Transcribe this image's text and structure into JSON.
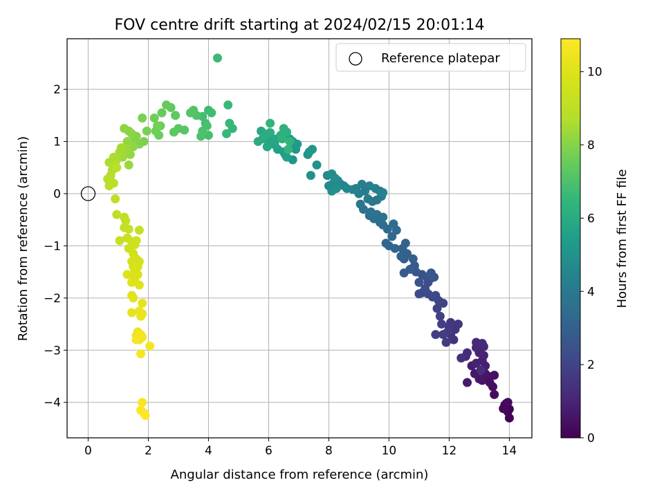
{
  "chart_data": {
    "type": "scatter",
    "title": "FOV centre drift starting at 2024/02/15 20:01:14",
    "xlabel": "Angular distance from reference (arcmin)",
    "ylabel": "Rotation from reference (arcmin)",
    "xlim": [
      -0.7,
      14.75
    ],
    "ylim": [
      -4.68,
      2.97
    ],
    "xticks": [
      0,
      2,
      4,
      6,
      8,
      10,
      12,
      14
    ],
    "yticks": [
      2,
      1,
      0,
      -1,
      -2,
      -3,
      -4
    ],
    "xtick_labels": [
      "0",
      "2",
      "4",
      "6",
      "8",
      "10",
      "12",
      "14"
    ],
    "ytick_labels": [
      "2",
      "1",
      "0",
      "−1",
      "−2",
      "−3",
      "−4"
    ],
    "grid": true,
    "colormap": "viridis",
    "legend": {
      "placement": "top-right",
      "entries": [
        {
          "label": "Reference platepar",
          "marker": "open-circle"
        }
      ]
    },
    "reference_point": {
      "x": 0,
      "y": 0
    },
    "colorbar": {
      "label": "Hours from first FF file",
      "range": [
        0,
        10.9
      ],
      "ticks": [
        0,
        2,
        4,
        6,
        8,
        10
      ],
      "tick_labels": [
        "0",
        "2",
        "4",
        "6",
        "8",
        "10"
      ]
    },
    "series": [
      {
        "points": [
          [
            14.0,
            -4.3
          ],
          [
            13.95,
            -4.18
          ],
          [
            14.0,
            -4.13
          ],
          [
            13.9,
            -4.02
          ],
          [
            13.8,
            -4.12
          ],
          [
            13.85,
            -4.05
          ],
          [
            13.95,
            -4.0
          ],
          [
            13.5,
            -3.85
          ],
          [
            13.45,
            -3.7
          ],
          [
            13.35,
            -3.62
          ],
          [
            13.5,
            -3.48
          ],
          [
            13.3,
            -3.5
          ],
          [
            13.1,
            -3.58
          ],
          [
            13.2,
            -3.45
          ],
          [
            13.0,
            -3.55
          ],
          [
            12.85,
            -3.45
          ],
          [
            12.6,
            -3.62
          ],
          [
            12.75,
            -3.3
          ],
          [
            13.2,
            -3.3
          ],
          [
            13.1,
            -3.2
          ],
          [
            12.9,
            -3.25
          ],
          [
            13.15,
            -3.1
          ],
          [
            13.0,
            -3.05
          ],
          [
            12.9,
            -2.95
          ],
          [
            13.15,
            -2.93
          ],
          [
            12.9,
            -2.85
          ],
          [
            13.1,
            -2.87
          ],
          [
            12.55,
            -3.12
          ],
          [
            12.6,
            -3.05
          ],
          [
            12.4,
            -3.15
          ],
          [
            13.05,
            -3.38
          ],
          [
            12.15,
            -2.8
          ],
          [
            12.05,
            -2.7
          ],
          [
            12.2,
            -2.6
          ],
          [
            12.3,
            -2.5
          ],
          [
            12.05,
            -2.47
          ],
          [
            12.0,
            -2.55
          ],
          [
            11.95,
            -2.65
          ],
          [
            11.9,
            -2.85
          ],
          [
            11.8,
            -2.7
          ],
          [
            11.55,
            -2.7
          ],
          [
            11.75,
            -2.5
          ],
          [
            11.7,
            -2.35
          ],
          [
            11.6,
            -2.2
          ],
          [
            11.8,
            -2.1
          ],
          [
            11.65,
            -2.05
          ],
          [
            11.55,
            -1.95
          ],
          [
            11.45,
            -1.98
          ],
          [
            11.3,
            -1.92
          ],
          [
            11.1,
            -1.9
          ],
          [
            11.0,
            -1.92
          ],
          [
            11.2,
            -1.82
          ],
          [
            11.3,
            -1.7
          ],
          [
            11.4,
            -1.62
          ],
          [
            11.25,
            -1.6
          ],
          [
            11.1,
            -1.55
          ],
          [
            11.0,
            -1.7
          ],
          [
            10.9,
            -1.5
          ],
          [
            11.5,
            -1.6
          ],
          [
            11.4,
            -1.52
          ],
          [
            11.35,
            -1.58
          ],
          [
            10.85,
            -1.38
          ],
          [
            10.5,
            -1.52
          ],
          [
            10.7,
            -1.45
          ],
          [
            10.8,
            -1.25
          ],
          [
            10.6,
            -1.15
          ],
          [
            10.5,
            -1.25
          ],
          [
            10.4,
            -1.2
          ],
          [
            10.45,
            -1.05
          ],
          [
            10.55,
            -0.95
          ],
          [
            10.2,
            -1.05
          ],
          [
            10.0,
            -1.0
          ],
          [
            9.9,
            -0.95
          ],
          [
            10.1,
            -0.82
          ],
          [
            10.25,
            -0.7
          ],
          [
            9.95,
            -0.68
          ],
          [
            10.15,
            -0.58
          ],
          [
            9.8,
            -0.6
          ],
          [
            9.7,
            -0.55
          ],
          [
            9.5,
            -0.48
          ],
          [
            9.6,
            -0.4
          ],
          [
            9.35,
            -0.42
          ],
          [
            9.4,
            -0.35
          ],
          [
            9.8,
            -0.45
          ],
          [
            9.15,
            -0.3
          ],
          [
            9.05,
            -0.2
          ],
          [
            9.45,
            -0.15
          ],
          [
            9.6,
            -0.12
          ],
          [
            9.75,
            -0.05
          ],
          [
            9.3,
            -0.1
          ],
          [
            9.7,
            0.05
          ],
          [
            9.2,
            0.05
          ],
          [
            9.0,
            0.0
          ],
          [
            8.9,
            0.1
          ],
          [
            9.1,
            0.18
          ],
          [
            9.35,
            0.15
          ],
          [
            9.55,
            0.1
          ],
          [
            9.8,
            0.02
          ],
          [
            8.8,
            0.08
          ],
          [
            8.6,
            0.1
          ],
          [
            8.5,
            0.15
          ],
          [
            8.4,
            0.18
          ],
          [
            8.3,
            0.25
          ],
          [
            8.15,
            0.2
          ],
          [
            8.0,
            0.15
          ],
          [
            7.95,
            0.35
          ],
          [
            8.1,
            0.38
          ],
          [
            8.2,
            0.3
          ],
          [
            8.25,
            0.1
          ],
          [
            8.1,
            0.05
          ],
          [
            7.4,
            0.35
          ],
          [
            7.6,
            0.55
          ],
          [
            7.3,
            0.75
          ],
          [
            7.45,
            0.85
          ],
          [
            7.35,
            0.8
          ],
          [
            6.8,
            0.65
          ],
          [
            6.9,
            0.85
          ],
          [
            6.75,
            0.9
          ],
          [
            6.95,
            0.95
          ],
          [
            6.7,
            1.05
          ],
          [
            6.8,
            1.0
          ],
          [
            6.5,
            0.8
          ],
          [
            6.55,
            0.75
          ],
          [
            6.6,
            0.7
          ],
          [
            6.3,
            0.85
          ],
          [
            6.15,
            0.95
          ],
          [
            6.0,
            1.0
          ],
          [
            6.1,
            1.05
          ],
          [
            6.2,
            0.95
          ],
          [
            6.25,
            1.05
          ],
          [
            5.95,
            0.9
          ],
          [
            5.85,
            1.15
          ],
          [
            5.75,
            1.2
          ],
          [
            5.8,
            1.05
          ],
          [
            5.65,
            1.0
          ],
          [
            5.9,
            1.12
          ],
          [
            6.05,
            1.17
          ],
          [
            6.4,
            1.12
          ],
          [
            6.6,
            1.18
          ],
          [
            6.5,
            1.25
          ],
          [
            6.45,
            1.05
          ],
          [
            6.05,
            1.35
          ],
          [
            6.7,
            1.0
          ],
          [
            6.65,
            0.85
          ],
          [
            4.8,
            1.25
          ],
          [
            4.6,
            1.15
          ],
          [
            4.7,
            1.35
          ],
          [
            4.65,
            1.7
          ],
          [
            4.3,
            2.6
          ],
          [
            4.0,
            1.6
          ],
          [
            4.1,
            1.55
          ],
          [
            3.9,
            1.35
          ],
          [
            3.8,
            1.48
          ],
          [
            4.0,
            1.12
          ],
          [
            3.95,
            1.3
          ],
          [
            3.8,
            1.2
          ],
          [
            3.75,
            1.1
          ],
          [
            3.6,
            1.5
          ],
          [
            3.5,
            1.6
          ],
          [
            3.4,
            1.55
          ],
          [
            3.2,
            1.22
          ],
          [
            3.0,
            1.25
          ],
          [
            2.85,
            1.18
          ],
          [
            2.9,
            1.5
          ],
          [
            2.75,
            1.65
          ],
          [
            2.6,
            1.7
          ],
          [
            2.45,
            1.55
          ],
          [
            2.4,
            1.3
          ],
          [
            2.35,
            1.12
          ],
          [
            2.25,
            1.2
          ],
          [
            2.2,
            1.45
          ],
          [
            2.3,
            1.3
          ],
          [
            1.95,
            1.2
          ],
          [
            1.8,
            1.45
          ],
          [
            1.85,
            1.0
          ],
          [
            1.7,
            0.95
          ],
          [
            1.6,
            1.1
          ],
          [
            1.55,
            1.05
          ],
          [
            1.45,
            1.15
          ],
          [
            1.35,
            1.2
          ],
          [
            1.2,
            1.25
          ],
          [
            1.5,
            0.9
          ],
          [
            1.3,
            1.0
          ],
          [
            1.4,
            0.75
          ],
          [
            1.35,
            0.55
          ],
          [
            1.25,
            0.85
          ],
          [
            1.15,
            0.7
          ],
          [
            1.05,
            0.8
          ],
          [
            1.1,
            0.88
          ],
          [
            0.95,
            0.65
          ],
          [
            0.85,
            0.7
          ],
          [
            0.7,
            0.6
          ],
          [
            0.8,
            0.45
          ],
          [
            0.9,
            0.55
          ],
          [
            0.75,
            0.35
          ],
          [
            0.65,
            0.28
          ],
          [
            0.7,
            0.15
          ],
          [
            0.85,
            0.2
          ],
          [
            0.95,
            0.5
          ],
          [
            0.9,
            -0.1
          ],
          [
            0.95,
            -0.4
          ],
          [
            1.2,
            -0.45
          ],
          [
            1.25,
            -0.52
          ],
          [
            1.2,
            -0.65
          ],
          [
            1.35,
            -0.68
          ],
          [
            1.7,
            -0.7
          ],
          [
            1.05,
            -0.9
          ],
          [
            1.3,
            -0.85
          ],
          [
            1.45,
            -0.92
          ],
          [
            1.55,
            -0.98
          ],
          [
            1.6,
            -0.9
          ],
          [
            1.35,
            -1.05
          ],
          [
            1.5,
            -1.15
          ],
          [
            1.6,
            -1.25
          ],
          [
            1.7,
            -1.3
          ],
          [
            1.45,
            -1.3
          ],
          [
            1.5,
            -1.4
          ],
          [
            1.55,
            -1.5
          ],
          [
            1.65,
            -1.4
          ],
          [
            1.55,
            -1.62
          ],
          [
            1.65,
            -1.55
          ],
          [
            1.3,
            -1.55
          ],
          [
            1.45,
            -1.7
          ],
          [
            1.7,
            -1.75
          ],
          [
            1.45,
            -1.95
          ],
          [
            1.5,
            -2.0
          ],
          [
            1.8,
            -2.1
          ],
          [
            1.45,
            -2.28
          ],
          [
            1.7,
            -2.25
          ],
          [
            1.8,
            -2.3
          ],
          [
            1.75,
            -2.35
          ],
          [
            1.65,
            -2.65
          ],
          [
            1.6,
            -2.72
          ],
          [
            1.7,
            -2.8
          ],
          [
            1.8,
            -2.75
          ],
          [
            1.75,
            -2.7
          ],
          [
            1.6,
            -2.8
          ],
          [
            2.05,
            -2.92
          ],
          [
            1.75,
            -3.07
          ],
          [
            1.8,
            -4.0
          ],
          [
            1.75,
            -4.15
          ],
          [
            1.85,
            -4.2
          ],
          [
            1.9,
            -4.25
          ]
        ]
      }
    ]
  }
}
